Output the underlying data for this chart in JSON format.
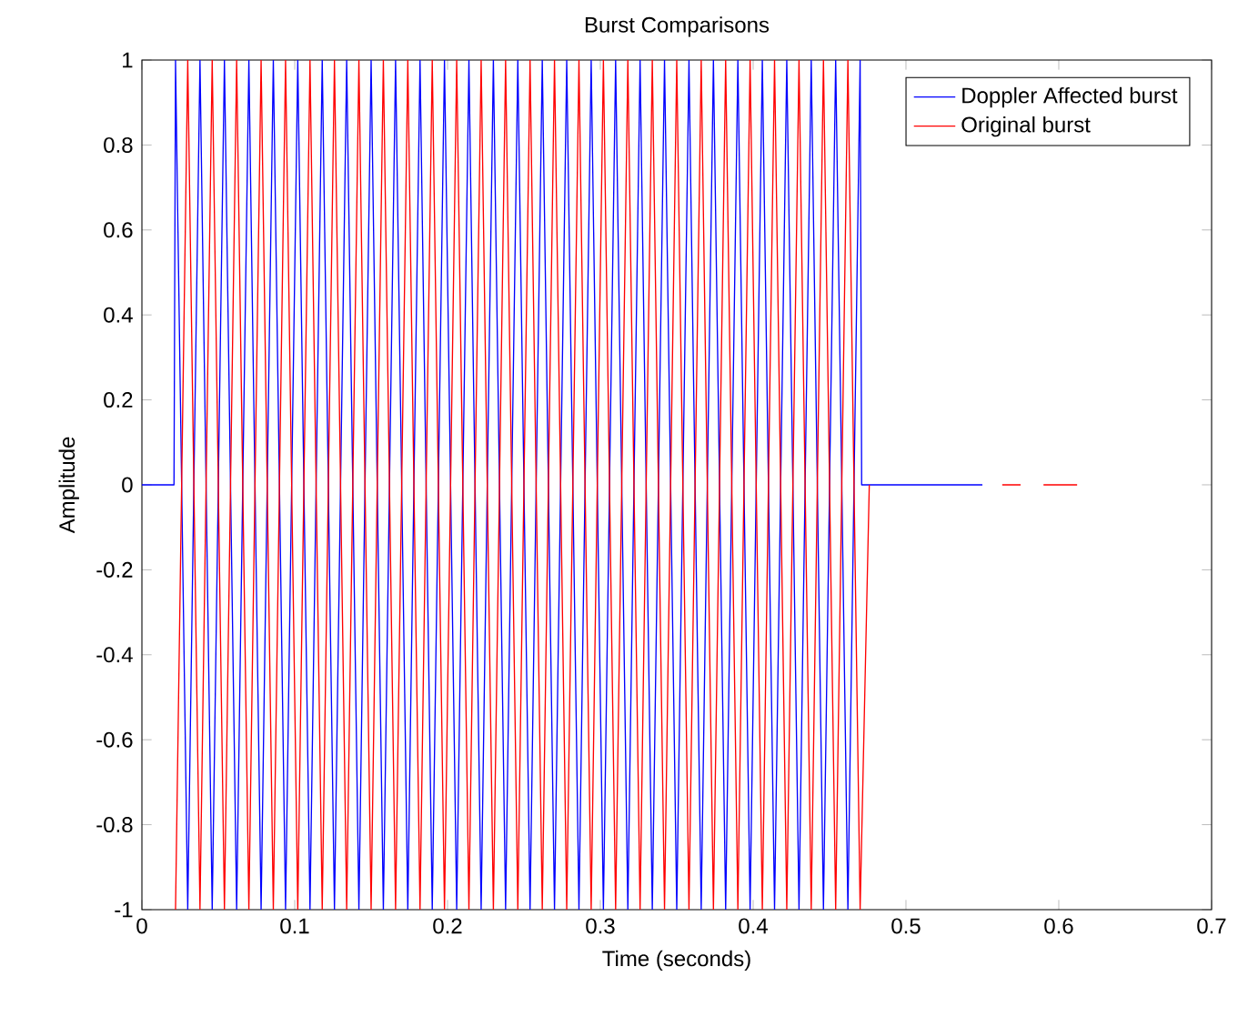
{
  "chart_data": {
    "type": "line",
    "title": "Burst Comparisons",
    "xlabel": "Time (seconds)",
    "ylabel": "Amplitude",
    "xlim": [
      0,
      0.7
    ],
    "xticks": [
      0,
      0.1,
      0.2,
      0.3,
      0.4,
      0.5,
      0.6,
      0.7
    ],
    "ylim": [
      -1,
      1
    ],
    "yticks": [
      -1,
      -0.8,
      -0.6,
      -0.4,
      -0.2,
      0,
      0.2,
      0.4,
      0.6,
      0.8,
      1
    ],
    "grid": false,
    "legend": "top right",
    "marker": "none",
    "line_style": "solid",
    "series": [
      {
        "name": "Doppler Affected burst",
        "color": "#0000ff",
        "x": [
          0,
          0.021,
          0.022,
          0.03,
          0.038,
          0.046,
          0.054,
          0.062,
          0.07,
          0.078,
          0.086,
          0.094,
          0.102,
          0.11,
          0.118,
          0.126,
          0.134,
          0.142,
          0.15,
          0.158,
          0.166,
          0.174,
          0.182,
          0.19,
          0.198,
          0.206,
          0.214,
          0.222,
          0.23,
          0.238,
          0.246,
          0.254,
          0.262,
          0.27,
          0.278,
          0.286,
          0.294,
          0.302,
          0.31,
          0.318,
          0.326,
          0.334,
          0.342,
          0.35,
          0.358,
          0.366,
          0.374,
          0.382,
          0.39,
          0.398,
          0.406,
          0.414,
          0.422,
          0.43,
          0.438,
          0.446,
          0.454,
          0.462,
          0.47,
          0.471,
          0.55
        ],
        "values": [
          0,
          0,
          1,
          -1,
          1,
          -1,
          1,
          -1,
          1,
          -1,
          1,
          -1,
          1,
          -1,
          1,
          -1,
          1,
          -1,
          1,
          -1,
          1,
          -1,
          1,
          -1,
          1,
          -1,
          1,
          -1,
          1,
          -1,
          1,
          -1,
          1,
          -1,
          1,
          -1,
          1,
          -1,
          1,
          -1,
          1,
          -1,
          1,
          -1,
          1,
          -1,
          1,
          -1,
          1,
          -1,
          1,
          -1,
          1,
          -1,
          1,
          -1,
          1,
          -1,
          1,
          0,
          0
        ]
      },
      {
        "name": "Original burst",
        "color": "#ff0000",
        "x": [
          0.022,
          0.03,
          0.038,
          0.046,
          0.054,
          0.062,
          0.07,
          0.078,
          0.086,
          0.094,
          0.102,
          0.11,
          0.118,
          0.126,
          0.134,
          0.142,
          0.15,
          0.158,
          0.166,
          0.174,
          0.182,
          0.19,
          0.198,
          0.206,
          0.214,
          0.222,
          0.23,
          0.238,
          0.246,
          0.254,
          0.262,
          0.27,
          0.278,
          0.286,
          0.294,
          0.302,
          0.31,
          0.318,
          0.326,
          0.334,
          0.342,
          0.35,
          0.358,
          0.366,
          0.374,
          0.382,
          0.39,
          0.398,
          0.406,
          0.414,
          0.422,
          0.43,
          0.438,
          0.446,
          0.454,
          0.462,
          0.47,
          0.476,
          0.556,
          0.563,
          0.575,
          0.582,
          0.59,
          0.612
        ],
        "values": [
          -1,
          1,
          -1,
          1,
          -1,
          1,
          -1,
          1,
          -1,
          1,
          -1,
          1,
          -1,
          1,
          -1,
          1,
          -1,
          1,
          -1,
          1,
          -1,
          1,
          -1,
          1,
          -1,
          1,
          -1,
          1,
          -1,
          1,
          -1,
          1,
          -1,
          1,
          -1,
          1,
          -1,
          1,
          -1,
          1,
          -1,
          1,
          -1,
          1,
          -1,
          1,
          -1,
          1,
          -1,
          1,
          -1,
          1,
          -1,
          1,
          -1,
          1,
          -1,
          0,
          null,
          0,
          0,
          null,
          0,
          0
        ]
      }
    ]
  }
}
